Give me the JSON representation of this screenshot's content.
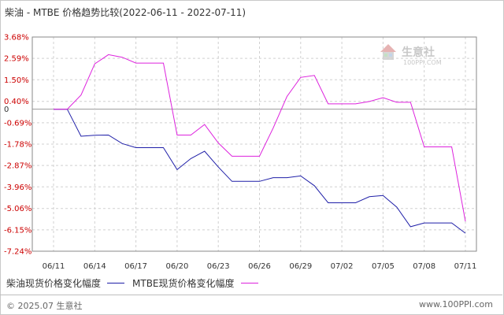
{
  "title": "柴油 - MTBE 价格趋势比较(2022-06-11 - 2022-07-11)",
  "watermark": {
    "name": "生意社",
    "url": "100PPI.COM"
  },
  "footer": {
    "left": "© 2025.07 生意社",
    "right": "www.100PPI.com"
  },
  "colors": {
    "diesel": "#1f1fa8",
    "mtbe": "#dd22dd",
    "ytick": "#cc0000",
    "grid": "#d0d0d0"
  },
  "chart_data": {
    "type": "line",
    "title": "柴油 - MTBE 价格趋势比较(2022-06-11 - 2022-07-11)",
    "xlabel": "",
    "ylabel": "",
    "ylim": [
      -7.24,
      3.68
    ],
    "yticks": [
      "3.68%",
      "2.59%",
      "1.50%",
      "0.40%",
      "0",
      "-0.69%",
      "-1.78%",
      "-2.87%",
      "-3.96%",
      "-5.06%",
      "-6.15%",
      "-7.24%"
    ],
    "ytick_values": [
      3.68,
      2.59,
      1.5,
      0.4,
      0,
      -0.69,
      -1.78,
      -2.87,
      -3.96,
      -5.06,
      -6.15,
      -7.24
    ],
    "x": [
      "06/11",
      "06/12",
      "06/13",
      "06/14",
      "06/15",
      "06/16",
      "06/17",
      "06/18",
      "06/19",
      "06/20",
      "06/21",
      "06/22",
      "06/23",
      "06/24",
      "06/25",
      "06/26",
      "06/27",
      "06/28",
      "06/29",
      "06/30",
      "07/01",
      "07/02",
      "07/03",
      "07/04",
      "07/05",
      "07/06",
      "07/07",
      "07/08",
      "07/09",
      "07/10",
      "07/11"
    ],
    "xticks": [
      "06/11",
      "06/14",
      "06/17",
      "06/20",
      "06/23",
      "06/26",
      "06/29",
      "07/02",
      "07/05",
      "07/08",
      "07/11"
    ],
    "grid": true,
    "legend_position": "bottom-left",
    "series": [
      {
        "name": "柴油现货价格变化幅度",
        "color": "#1f1fa8",
        "values": [
          0,
          0,
          -1.38,
          -1.33,
          -1.32,
          -1.75,
          -1.96,
          -1.96,
          -1.96,
          -3.08,
          -2.52,
          -2.14,
          -2.95,
          -3.68,
          -3.68,
          -3.68,
          -3.49,
          -3.49,
          -3.4,
          -3.9,
          -4.77,
          -4.77,
          -4.77,
          -4.46,
          -4.4,
          -4.99,
          -5.99,
          -5.8,
          -5.8,
          -5.8,
          -6.32
        ]
      },
      {
        "name": "MTBE现货价格变化幅度",
        "color": "#dd22dd",
        "values": [
          0,
          0,
          0.72,
          2.31,
          2.78,
          2.65,
          2.35,
          2.35,
          2.35,
          -1.32,
          -1.32,
          -0.78,
          -1.72,
          -2.4,
          -2.4,
          -2.4,
          -0.96,
          0.65,
          1.62,
          1.72,
          0.27,
          0.27,
          0.27,
          0.39,
          0.59,
          0.35,
          0.35,
          -1.92,
          -1.92,
          -1.92,
          -5.72
        ]
      }
    ]
  }
}
